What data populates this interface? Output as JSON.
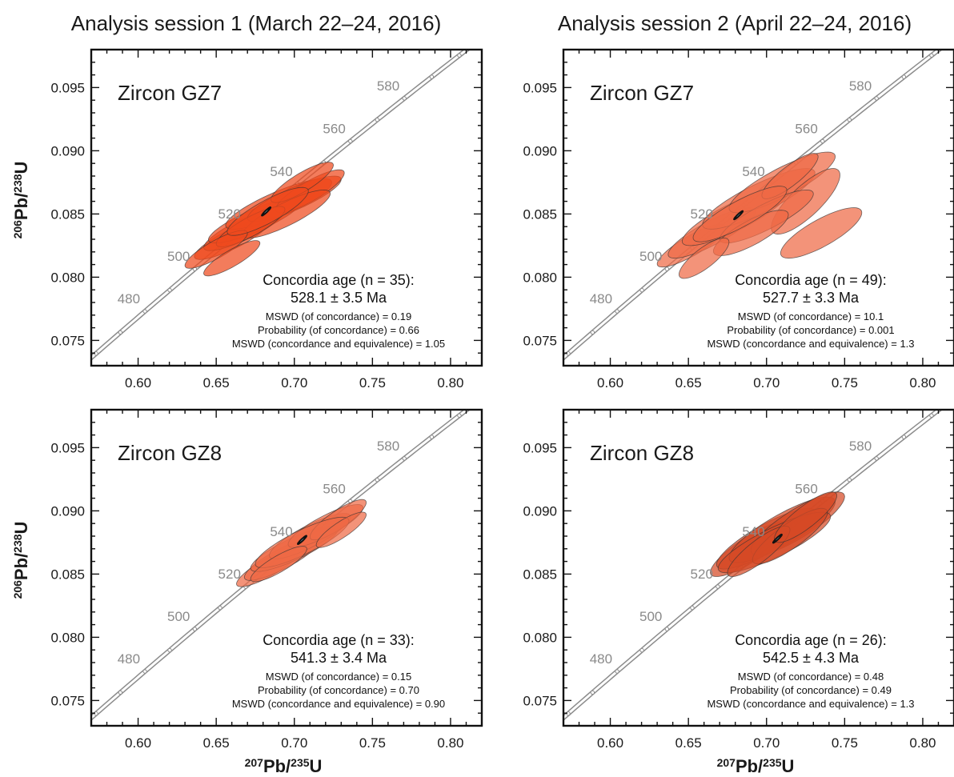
{
  "figure": {
    "session_titles": [
      "Analysis session 1 (March 22–24, 2016)",
      "Analysis session 2 (April 22–24, 2016)"
    ],
    "axis_labels": {
      "x_sup": "207",
      "x_rest": "Pb/",
      "x_sup2": "235",
      "x_tail": "U",
      "y_sup": "206",
      "y_rest": "Pb/",
      "y_sup2": "238",
      "y_tail": "U"
    }
  },
  "chart_data": [
    {
      "type": "scatter",
      "subtype": "concordia-ellipses",
      "session": 1,
      "sample": "Zircon GZ7",
      "xlim": [
        0.57,
        0.82
      ],
      "ylim": [
        0.073,
        0.098
      ],
      "xticks": [
        "0.60",
        "0.65",
        "0.70",
        "0.75",
        "0.80"
      ],
      "yticks": [
        "0.075",
        "0.080",
        "0.085",
        "0.090",
        "0.095"
      ],
      "concordia_ages_labeled": [
        "480",
        "500",
        "520",
        "540",
        "560",
        "580"
      ],
      "concordia_age_title": "Concordia age (n = 35):",
      "concordia_age": "528.1 ± 3.5 Ma",
      "stats": [
        "MSWD (of concordance) = 0.19",
        "Probability (of concordance) = 0.66",
        "MSWD (concordance and equivalence) = 1.05"
      ],
      "ellipse_color": "#ee4a1d",
      "ellipses": [
        [
          0.66,
          0.083,
          0.024,
          0.0016,
          0.85
        ],
        [
          0.668,
          0.0838,
          0.026,
          0.0017,
          0.85
        ],
        [
          0.675,
          0.0845,
          0.03,
          0.0018,
          0.85
        ],
        [
          0.69,
          0.0858,
          0.034,
          0.002,
          0.85
        ],
        [
          0.7,
          0.0862,
          0.03,
          0.0018,
          0.85
        ],
        [
          0.71,
          0.0868,
          0.022,
          0.0017,
          0.85
        ],
        [
          0.695,
          0.085,
          0.028,
          0.0019,
          0.85
        ],
        [
          0.672,
          0.084,
          0.022,
          0.0016,
          0.85
        ],
        [
          0.65,
          0.0822,
          0.02,
          0.0015,
          0.85
        ],
        [
          0.66,
          0.0815,
          0.018,
          0.0014,
          0.85
        ],
        [
          0.705,
          0.0875,
          0.02,
          0.0016,
          0.85
        ],
        [
          0.683,
          0.0852,
          0.026,
          0.0019,
          0.85
        ]
      ],
      "mean": [
        0.682,
        0.0852
      ]
    },
    {
      "type": "scatter",
      "subtype": "concordia-ellipses",
      "session": 2,
      "sample": "Zircon GZ7",
      "xlim": [
        0.57,
        0.82
      ],
      "ylim": [
        0.073,
        0.098
      ],
      "xticks": [
        "0.60",
        "0.65",
        "0.70",
        "0.75",
        "0.80"
      ],
      "yticks": [
        "0.075",
        "0.080",
        "0.085",
        "0.090",
        "0.095"
      ],
      "concordia_ages_labeled": [
        "480",
        "500",
        "520",
        "540",
        "560",
        "580"
      ],
      "concordia_age_title": "Concordia age (n = 49):",
      "concordia_age": "527.7 ± 3.3 Ma",
      "stats": [
        "MSWD (of concordance) = 10.1",
        "Probability (of concordance) = 0.001",
        "MSWD (concordance and equivalence) = 1.3"
      ],
      "ellipse_color": "#ee6a45",
      "ellipses": [
        [
          0.652,
          0.0825,
          0.022,
          0.0017,
          0.85
        ],
        [
          0.665,
          0.0835,
          0.028,
          0.002,
          0.85
        ],
        [
          0.68,
          0.0848,
          0.034,
          0.0023,
          0.85
        ],
        [
          0.695,
          0.0862,
          0.036,
          0.0024,
          0.85
        ],
        [
          0.71,
          0.0875,
          0.034,
          0.0024,
          0.85
        ],
        [
          0.725,
          0.086,
          0.022,
          0.0026,
          0.8
        ],
        [
          0.7,
          0.0848,
          0.03,
          0.0021,
          0.85
        ],
        [
          0.69,
          0.0835,
          0.024,
          0.0018,
          0.8
        ],
        [
          0.735,
          0.0835,
          0.026,
          0.002,
          0.8
        ],
        [
          0.66,
          0.0815,
          0.016,
          0.0016,
          0.8
        ],
        [
          0.715,
          0.088,
          0.018,
          0.0018,
          0.85
        ],
        [
          0.683,
          0.085,
          0.03,
          0.0022,
          0.85
        ]
      ],
      "mean": [
        0.682,
        0.0849
      ]
    },
    {
      "type": "scatter",
      "subtype": "concordia-ellipses",
      "session": 1,
      "sample": "Zircon GZ8",
      "xlim": [
        0.57,
        0.82
      ],
      "ylim": [
        0.073,
        0.098
      ],
      "xticks": [
        "0.60",
        "0.65",
        "0.70",
        "0.75",
        "0.80"
      ],
      "yticks": [
        "0.075",
        "0.080",
        "0.085",
        "0.090",
        "0.095"
      ],
      "concordia_ages_labeled": [
        "480",
        "500",
        "520",
        "540",
        "560",
        "580"
      ],
      "concordia_age_title": "Concordia age (n = 33):",
      "concordia_age": "541.3 ± 3.4 Ma",
      "stats": [
        "MSWD (of concordance) = 0.15",
        "Probability (of concordance) = 0.70",
        "MSWD (concordance and equivalence) = 0.90"
      ],
      "ellipse_color": "#ee6a45",
      "ellipses": [
        [
          0.683,
          0.0855,
          0.02,
          0.0015,
          0.85
        ],
        [
          0.692,
          0.0862,
          0.024,
          0.0017,
          0.85
        ],
        [
          0.7,
          0.087,
          0.028,
          0.0018,
          0.85
        ],
        [
          0.71,
          0.088,
          0.026,
          0.0018,
          0.85
        ],
        [
          0.72,
          0.0888,
          0.024,
          0.0017,
          0.85
        ],
        [
          0.728,
          0.0893,
          0.018,
          0.0016,
          0.85
        ],
        [
          0.705,
          0.0875,
          0.03,
          0.002,
          0.85
        ],
        [
          0.69,
          0.0858,
          0.018,
          0.0014,
          0.85
        ],
        [
          0.73,
          0.0885,
          0.016,
          0.0014,
          0.85
        ]
      ],
      "mean": [
        0.705,
        0.0877
      ]
    },
    {
      "type": "scatter",
      "subtype": "concordia-ellipses",
      "session": 2,
      "sample": "Zircon GZ8",
      "xlim": [
        0.57,
        0.82
      ],
      "ylim": [
        0.073,
        0.098
      ],
      "xticks": [
        "0.60",
        "0.65",
        "0.70",
        "0.75",
        "0.80"
      ],
      "yticks": [
        "0.075",
        "0.080",
        "0.085",
        "0.090",
        "0.095"
      ],
      "concordia_ages_labeled": [
        "480",
        "500",
        "520",
        "540",
        "560",
        "580"
      ],
      "concordia_age_title": "Concordia age (n = 26):",
      "concordia_age": "542.5 ± 4.3 Ma",
      "stats": [
        "MSWD (of concordance) = 0.48",
        "Probability (of concordance) = 0.49",
        "MSWD (concordance and equivalence) = 1.3"
      ],
      "ellipse_color": "#d64a26",
      "ellipses": [
        [
          0.69,
          0.087,
          0.026,
          0.0022,
          0.85
        ],
        [
          0.7,
          0.0878,
          0.032,
          0.0024,
          0.85
        ],
        [
          0.71,
          0.0885,
          0.034,
          0.0026,
          0.85
        ],
        [
          0.72,
          0.089,
          0.03,
          0.0025,
          0.85
        ],
        [
          0.705,
          0.0875,
          0.036,
          0.0024,
          0.85
        ],
        [
          0.715,
          0.088,
          0.024,
          0.0022,
          0.85
        ],
        [
          0.695,
          0.0868,
          0.02,
          0.002,
          0.85
        ],
        [
          0.725,
          0.0895,
          0.02,
          0.002,
          0.85
        ]
      ],
      "mean": [
        0.707,
        0.0878
      ]
    }
  ]
}
